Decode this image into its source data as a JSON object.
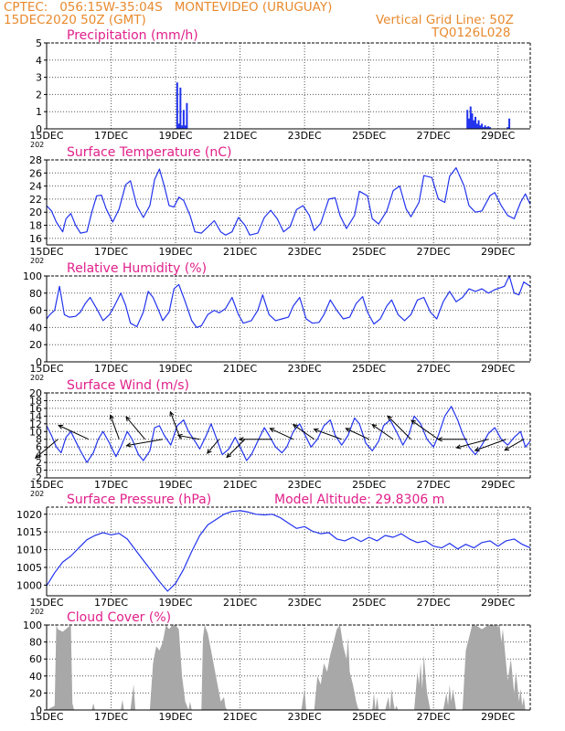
{
  "header": {
    "line1": "CPTEC:   056:15W-35:04S   MONTEVIDEO (URUGUAY)",
    "line2": "15DEC2020 50Z (GMT)",
    "grid_note": "Vertical Grid Line: 50Z",
    "code": "TQ0126L028"
  },
  "colors": {
    "header": "#e88a2e",
    "title": "#e0208a",
    "series": "#2233ee",
    "cloud": "#a8a8a8",
    "grid": "#555555"
  },
  "x_ticks": [
    "15DEC",
    "17DEC",
    "19DEC",
    "21DEC",
    "23DEC",
    "25DEC",
    "27DEC",
    "29DEC"
  ],
  "x_tick_note": "202",
  "chart_data": [
    {
      "type": "bar",
      "title": "Precipitation (mm/h)",
      "ylim": [
        0,
        5
      ],
      "yticks": [
        0,
        1,
        2,
        3,
        4,
        5
      ],
      "x": [
        4.05,
        4.1,
        4.15,
        4.2,
        4.25,
        4.3,
        4.35,
        13.05,
        13.1,
        13.15,
        13.2,
        13.25,
        13.3,
        13.35,
        13.4,
        13.45,
        13.5,
        13.55,
        13.6,
        13.65,
        13.7,
        13.75,
        14.3,
        14.35
      ],
      "values": [
        2.7,
        0.3,
        2.4,
        0.2,
        1.1,
        0.2,
        1.5,
        1.1,
        0.6,
        1.3,
        0.9,
        0.5,
        0.7,
        0.3,
        0.5,
        0.2,
        0.3,
        0.1,
        0.2,
        0.1,
        0.15,
        0.1,
        0.1,
        0.6
      ]
    },
    {
      "type": "line",
      "title": "Surface Temperature (nC)",
      "ylim": [
        15,
        28
      ],
      "yticks": [
        16,
        18,
        20,
        22,
        24,
        26,
        28
      ],
      "x": [
        0,
        0.15,
        0.3,
        0.5,
        0.6,
        0.75,
        0.9,
        1.05,
        1.25,
        1.4,
        1.55,
        1.7,
        1.85,
        2.05,
        2.25,
        2.45,
        2.6,
        2.8,
        3.0,
        3.2,
        3.35,
        3.5,
        3.65,
        3.8,
        3.95,
        4.1,
        4.25,
        4.45,
        4.6,
        4.8,
        4.95,
        5.2,
        5.4,
        5.55,
        5.75,
        5.95,
        6.15,
        6.3,
        6.55,
        6.75,
        6.95,
        7.15,
        7.35,
        7.55,
        7.75,
        7.95,
        8.15,
        8.3,
        8.5,
        8.75,
        8.95,
        9.1,
        9.3,
        9.55,
        9.7,
        9.95,
        10.1,
        10.3,
        10.55,
        10.75,
        10.95,
        11.15,
        11.3,
        11.55,
        11.7,
        11.95,
        12.15,
        12.35,
        12.5,
        12.7,
        12.95,
        13.1,
        13.3,
        13.5,
        13.75,
        13.9,
        14.1,
        14.3,
        14.5,
        14.7,
        14.85,
        15.0
      ],
      "values": [
        21.0,
        20.2,
        18.5,
        17.0,
        19.0,
        19.8,
        18.0,
        16.8,
        17.0,
        20.0,
        22.5,
        22.6,
        20.5,
        18.5,
        20.5,
        24.2,
        24.8,
        21.0,
        19.2,
        21.0,
        25.0,
        26.6,
        24.0,
        21.0,
        20.8,
        22.3,
        21.8,
        19.5,
        17.0,
        16.8,
        17.5,
        18.7,
        17.0,
        16.5,
        17.0,
        19.2,
        18.0,
        16.5,
        16.8,
        19.2,
        20.3,
        19.0,
        17.0,
        17.8,
        20.4,
        21.0,
        19.5,
        17.2,
        18.3,
        22.0,
        22.2,
        19.5,
        17.5,
        19.5,
        23.2,
        22.5,
        19.0,
        18.2,
        20.2,
        23.3,
        24.0,
        20.5,
        19.3,
        21.5,
        25.6,
        25.3,
        22.0,
        21.5,
        25.5,
        26.8,
        24.0,
        21.0,
        20.0,
        20.2,
        22.5,
        23.0,
        21.0,
        19.5,
        19.0,
        21.5,
        22.8,
        21.2
      ]
    },
    {
      "type": "line",
      "title": "Relative Humidity (%)",
      "ylim": [
        0,
        100
      ],
      "yticks": [
        0,
        20,
        40,
        60,
        80,
        100
      ],
      "x": [
        0,
        0.1,
        0.25,
        0.4,
        0.55,
        0.7,
        0.9,
        1.05,
        1.2,
        1.35,
        1.55,
        1.75,
        1.95,
        2.1,
        2.3,
        2.45,
        2.6,
        2.8,
        3.0,
        3.15,
        3.3,
        3.45,
        3.6,
        3.8,
        3.95,
        4.1,
        4.3,
        4.5,
        4.65,
        4.8,
        5.0,
        5.2,
        5.35,
        5.55,
        5.75,
        5.95,
        6.1,
        6.35,
        6.55,
        6.7,
        6.9,
        7.1,
        7.3,
        7.5,
        7.65,
        7.85,
        8.05,
        8.25,
        8.45,
        8.6,
        8.8,
        9.0,
        9.2,
        9.4,
        9.6,
        9.8,
        9.95,
        10.15,
        10.35,
        10.55,
        10.7,
        10.9,
        11.1,
        11.3,
        11.5,
        11.7,
        11.9,
        12.1,
        12.3,
        12.5,
        12.7,
        12.9,
        13.1,
        13.3,
        13.5,
        13.7,
        13.9,
        14.05,
        14.2,
        14.35,
        14.5,
        14.65,
        14.8,
        15.0
      ],
      "values": [
        50,
        55,
        60,
        88,
        55,
        52,
        53,
        58,
        68,
        75,
        62,
        48,
        55,
        65,
        80,
        66,
        45,
        41,
        58,
        82,
        75,
        62,
        48,
        58,
        85,
        90,
        70,
        48,
        40,
        42,
        55,
        60,
        57,
        62,
        75,
        55,
        45,
        48,
        60,
        78,
        55,
        48,
        50,
        52,
        65,
        75,
        50,
        45,
        46,
        55,
        72,
        60,
        50,
        52,
        68,
        76,
        58,
        44,
        50,
        65,
        72,
        55,
        48,
        55,
        72,
        75,
        58,
        50,
        70,
        82,
        70,
        75,
        85,
        82,
        85,
        80,
        84,
        86,
        88,
        100,
        80,
        78,
        93,
        88
      ]
    },
    {
      "type": "line",
      "title": "Surface Wind (m/s)",
      "ylim": [
        -2,
        20
      ],
      "yticks": [
        -2,
        0,
        2,
        4,
        6,
        8,
        10,
        12,
        14,
        16,
        18,
        20
      ],
      "x": [
        0,
        0.15,
        0.3,
        0.45,
        0.6,
        0.75,
        0.9,
        1.05,
        1.25,
        1.45,
        1.6,
        1.75,
        1.95,
        2.15,
        2.3,
        2.5,
        2.65,
        2.85,
        3.0,
        3.2,
        3.35,
        3.5,
        3.65,
        3.85,
        4.05,
        4.25,
        4.4,
        4.6,
        4.75,
        4.95,
        5.1,
        5.3,
        5.45,
        5.65,
        5.85,
        6.0,
        6.2,
        6.35,
        6.55,
        6.75,
        6.9,
        7.1,
        7.3,
        7.45,
        7.65,
        7.85,
        8.05,
        8.2,
        8.4,
        8.6,
        8.8,
        8.95,
        9.15,
        9.35,
        9.55,
        9.7,
        9.9,
        10.1,
        10.3,
        10.45,
        10.65,
        10.85,
        11.05,
        11.25,
        11.4,
        11.6,
        11.8,
        12.0,
        12.15,
        12.35,
        12.55,
        12.75,
        12.9,
        13.1,
        13.3,
        13.5,
        13.7,
        13.9,
        14.1,
        14.3,
        14.5,
        14.7,
        14.85,
        15.0
      ],
      "values": [
        11.5,
        9.0,
        6.0,
        4.5,
        8.5,
        10.0,
        7.5,
        5.0,
        2.0,
        4.5,
        8.0,
        10.0,
        7.0,
        3.5,
        6.0,
        10.0,
        8.0,
        4.0,
        2.5,
        5.0,
        11.0,
        11.5,
        9.0,
        6.5,
        11.5,
        13.0,
        10.0,
        7.5,
        5.5,
        9.0,
        12.0,
        7.5,
        4.0,
        5.5,
        8.5,
        6.0,
        2.5,
        4.0,
        7.5,
        11.0,
        9.0,
        6.0,
        4.5,
        6.0,
        10.0,
        12.0,
        8.5,
        6.0,
        8.0,
        11.5,
        13.0,
        9.0,
        6.5,
        9.0,
        13.5,
        12.0,
        7.0,
        5.0,
        7.5,
        11.5,
        13.0,
        10.0,
        6.5,
        9.5,
        14.0,
        12.0,
        8.0,
        6.0,
        9.0,
        14.0,
        16.5,
        13.0,
        9.5,
        6.0,
        4.0,
        6.5,
        9.5,
        11.0,
        8.0,
        6.5,
        8.5,
        10.0,
        6.0,
        7.5
      ],
      "vectors": {
        "x": [
          0.35,
          1.3,
          2.25,
          3.05,
          3.6,
          4.15,
          4.75,
          5.35,
          6.15,
          7.0,
          7.65,
          8.3,
          9.15,
          10.0,
          10.75,
          11.3,
          12.15,
          13.05,
          13.7,
          14.25,
          14.8
        ],
        "dir_deg": [
          140,
          205,
          250,
          230,
          170,
          250,
          190,
          130,
          135,
          180,
          205,
          215,
          200,
          205,
          215,
          225,
          215,
          180,
          165,
          160,
          150
        ],
        "speed": [
          8,
          9,
          7,
          8,
          10,
          8,
          6,
          5,
          7,
          9,
          7,
          7,
          8,
          7,
          7,
          9,
          9,
          8,
          9,
          9,
          6
        ]
      }
    },
    {
      "type": "line",
      "title": "Surface Pressure (hPa)",
      "annotation": "Model Altitude: 29.8306 m",
      "ylim": [
        997,
        1022
      ],
      "yticks": [
        1000,
        1005,
        1010,
        1015,
        1020
      ],
      "x": [
        0,
        0.25,
        0.5,
        0.75,
        1.0,
        1.25,
        1.5,
        1.75,
        2.0,
        2.25,
        2.5,
        2.75,
        3.0,
        3.25,
        3.5,
        3.75,
        4.0,
        4.25,
        4.5,
        4.75,
        5.0,
        5.25,
        5.5,
        5.75,
        6.0,
        6.25,
        6.5,
        6.75,
        7.0,
        7.25,
        7.5,
        7.75,
        8.0,
        8.25,
        8.5,
        8.75,
        9.0,
        9.25,
        9.5,
        9.75,
        10.0,
        10.25,
        10.5,
        10.75,
        11.0,
        11.25,
        11.5,
        11.75,
        12.0,
        12.25,
        12.5,
        12.75,
        13.0,
        13.25,
        13.5,
        13.75,
        14.0,
        14.25,
        14.5,
        14.75,
        15.0
      ],
      "values": [
        999.8,
        1003.5,
        1006.5,
        1008.2,
        1010.5,
        1012.8,
        1014.0,
        1014.8,
        1014.2,
        1014.6,
        1013.0,
        1010.0,
        1007.0,
        1004.0,
        1001.0,
        998.3,
        1000.5,
        1004.5,
        1009.5,
        1014.0,
        1017.0,
        1018.5,
        1020.0,
        1020.8,
        1021.0,
        1020.6,
        1020.0,
        1019.8,
        1020.0,
        1019.0,
        1017.5,
        1016.0,
        1016.5,
        1015.2,
        1014.5,
        1014.8,
        1013.0,
        1012.5,
        1013.5,
        1012.3,
        1013.5,
        1012.5,
        1014.0,
        1013.5,
        1014.5,
        1013.0,
        1012.0,
        1012.5,
        1011.0,
        1010.5,
        1011.8,
        1010.2,
        1011.5,
        1010.5,
        1012.0,
        1012.5,
        1011.0,
        1012.5,
        1013.0,
        1011.5,
        1010.5
      ]
    },
    {
      "type": "area",
      "title": "Cloud Cover (%)",
      "ylim": [
        0,
        100
      ],
      "yticks": [
        0,
        20,
        40,
        60,
        80,
        100
      ],
      "x": [
        0,
        0.25,
        0.3,
        0.35,
        0.5,
        0.75,
        0.8,
        0.85,
        1.0,
        1.4,
        1.45,
        1.5,
        2.0,
        2.3,
        2.35,
        2.4,
        2.6,
        2.7,
        2.75,
        2.8,
        3.2,
        3.3,
        3.4,
        3.5,
        3.6,
        3.7,
        3.8,
        3.9,
        4.0,
        4.1,
        4.2,
        4.3,
        4.4,
        4.45,
        4.5,
        4.6,
        4.8,
        4.85,
        4.9,
        5.0,
        5.1,
        5.2,
        5.3,
        5.4,
        5.5,
        5.55,
        5.6,
        7.9,
        8.0,
        8.05,
        8.1,
        8.3,
        8.4,
        8.5,
        8.6,
        8.7,
        8.8,
        8.9,
        9.0,
        9.1,
        9.2,
        9.3,
        9.35,
        9.4,
        9.5,
        9.6,
        9.65,
        9.7,
        9.8,
        10.1,
        10.15,
        10.2,
        10.25,
        10.3,
        10.5,
        10.6,
        10.65,
        10.7,
        10.75,
        10.8,
        10.85,
        10.9,
        11.4,
        11.5,
        11.55,
        11.6,
        11.65,
        11.7,
        11.75,
        11.8,
        11.9,
        12.3,
        12.4,
        12.45,
        12.5,
        12.55,
        12.6,
        12.7,
        12.9,
        13.0,
        13.1,
        13.2,
        13.3,
        13.5,
        13.7,
        13.9,
        14.0,
        14.05,
        14.1,
        14.15,
        14.2,
        14.3,
        14.4,
        14.5,
        14.55,
        14.6,
        14.65,
        14.7,
        14.75,
        14.8,
        14.85,
        15.0
      ],
      "values": [
        0,
        5,
        100,
        95,
        92,
        100,
        8,
        0,
        0,
        0,
        8,
        0,
        0,
        0,
        12,
        0,
        0,
        30,
        0,
        0,
        0,
        55,
        75,
        70,
        80,
        100,
        95,
        100,
        100,
        95,
        40,
        10,
        0,
        10,
        0,
        0,
        0,
        85,
        100,
        90,
        70,
        50,
        30,
        10,
        15,
        3,
        0,
        0,
        25,
        0,
        0,
        0,
        40,
        30,
        55,
        45,
        65,
        80,
        95,
        100,
        75,
        60,
        85,
        45,
        30,
        10,
        3,
        0,
        0,
        0,
        20,
        0,
        15,
        0,
        0,
        15,
        0,
        25,
        10,
        0,
        5,
        0,
        0,
        45,
        30,
        55,
        25,
        65,
        40,
        20,
        0,
        0,
        20,
        5,
        30,
        10,
        25,
        0,
        0,
        70,
        85,
        100,
        100,
        95,
        100,
        100,
        98,
        100,
        80,
        95,
        75,
        35,
        60,
        20,
        45,
        30,
        10,
        25,
        5,
        15,
        0,
        0
      ]
    }
  ]
}
